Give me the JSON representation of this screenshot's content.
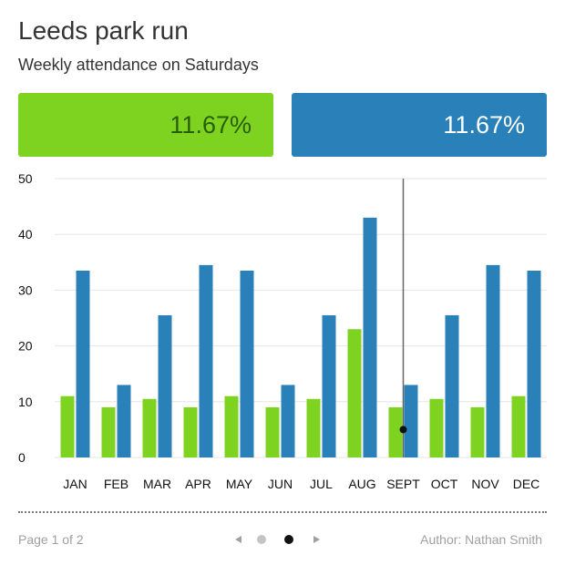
{
  "header": {
    "title": "Leeds park run",
    "subtitle": "Weekly attendance on Saturdays"
  },
  "stats": {
    "green_value": "11.67%",
    "blue_value": "11.67%"
  },
  "colors": {
    "green": "#7ed321",
    "blue": "#2a80b9",
    "green_text": "#2a5d0a"
  },
  "chart_data": {
    "type": "bar",
    "categories": [
      "JAN",
      "FEB",
      "MAR",
      "APR",
      "MAY",
      "JUN",
      "JUL",
      "AUG",
      "SEPT",
      "OCT",
      "NOV",
      "DEC"
    ],
    "series": [
      {
        "values": [
          11,
          9,
          10.5,
          9,
          11,
          9,
          10.5,
          23,
          9,
          10.5,
          9,
          11
        ]
      },
      {
        "values": [
          33.5,
          13,
          25.5,
          34.5,
          33.5,
          13,
          25.5,
          43,
          13,
          25.5,
          34.5,
          33.5
        ]
      }
    ],
    "y_ticks": [
      0,
      10,
      20,
      30,
      40,
      50
    ],
    "ylim": [
      0,
      50
    ],
    "grid": true,
    "cursor": {
      "category": "SEPT",
      "marker_value": 5
    }
  },
  "footer": {
    "page_label": "Page 1 of 2",
    "author": "Author: Nathan Smith",
    "prev_icon": "chevron-left-icon",
    "next_icon": "chevron-right-icon",
    "active_page_index": 1
  }
}
